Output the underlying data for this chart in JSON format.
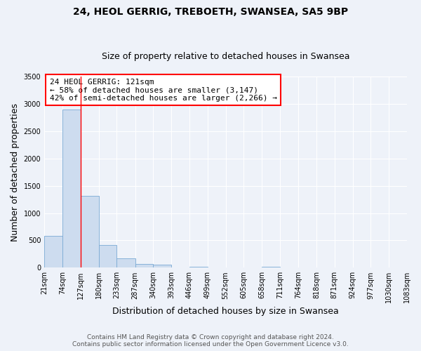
{
  "title": "24, HEOL GERRIG, TREBOETH, SWANSEA, SA5 9BP",
  "subtitle": "Size of property relative to detached houses in Swansea",
  "xlabel": "Distribution of detached houses by size in Swansea",
  "ylabel": "Number of detached properties",
  "bin_edges": [
    21,
    74,
    127,
    180,
    233,
    287,
    340,
    393,
    446,
    499,
    552,
    605,
    658,
    711,
    764,
    818,
    871,
    924,
    977,
    1030,
    1083
  ],
  "bin_labels": [
    "21sqm",
    "74sqm",
    "127sqm",
    "180sqm",
    "233sqm",
    "287sqm",
    "340sqm",
    "393sqm",
    "446sqm",
    "499sqm",
    "552sqm",
    "605sqm",
    "658sqm",
    "711sqm",
    "764sqm",
    "818sqm",
    "871sqm",
    "924sqm",
    "977sqm",
    "1030sqm",
    "1083sqm"
  ],
  "bar_heights": [
    580,
    2900,
    1310,
    420,
    170,
    70,
    55,
    0,
    20,
    0,
    0,
    0,
    20,
    0,
    0,
    0,
    0,
    0,
    0,
    0
  ],
  "bar_color": "#cddcef",
  "bar_edge_color": "#7aaad4",
  "property_line_x": 127,
  "property_line_color": "red",
  "annotation_text": "24 HEOL GERRIG: 121sqm\n← 58% of detached houses are smaller (3,147)\n42% of semi-detached houses are larger (2,266) →",
  "annotation_box_color": "white",
  "annotation_box_edge_color": "red",
  "ylim": [
    0,
    3500
  ],
  "yticks": [
    0,
    500,
    1000,
    1500,
    2000,
    2500,
    3000,
    3500
  ],
  "footer_line1": "Contains HM Land Registry data © Crown copyright and database right 2024.",
  "footer_line2": "Contains public sector information licensed under the Open Government Licence v3.0.",
  "background_color": "#eef2f9",
  "grid_color": "white",
  "title_fontsize": 10,
  "subtitle_fontsize": 9,
  "axis_label_fontsize": 9,
  "tick_fontsize": 7,
  "annotation_fontsize": 8,
  "footer_fontsize": 6.5
}
